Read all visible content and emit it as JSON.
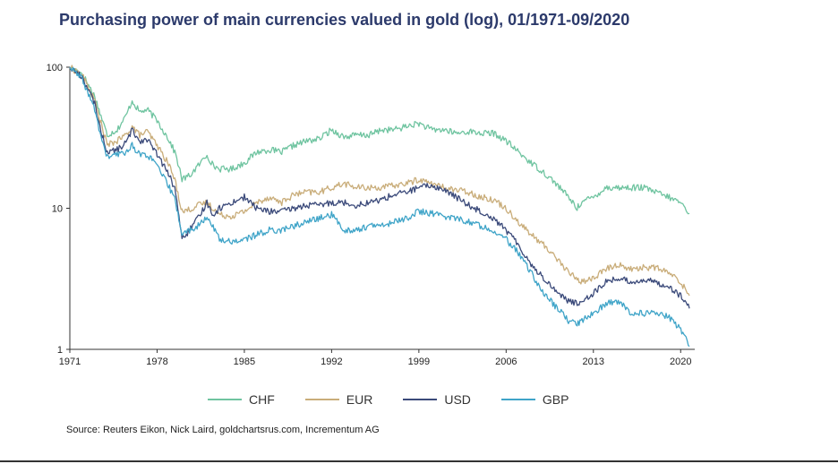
{
  "chart_data": {
    "type": "line",
    "title": "Purchasing power of main currencies valued in gold (log), 01/1971-09/2020",
    "xlabel": "",
    "ylabel": "",
    "yscale": "log",
    "ylim": [
      1,
      100
    ],
    "xlim": [
      1971,
      2020.7
    ],
    "y_ticks": [
      "1",
      "10",
      "100"
    ],
    "x_ticks": [
      "1971",
      "1978",
      "1985",
      "1992",
      "1999",
      "2006",
      "2013",
      "2020"
    ],
    "legend_position": "bottom",
    "series": [
      {
        "name": "CHF",
        "color": "#6fc4a0",
        "x": [
          1971,
          1972,
          1973,
          1973.5,
          1974,
          1974.8,
          1975.5,
          1976,
          1976.6,
          1977.2,
          1978,
          1979,
          1979.5,
          1980.0,
          1980.6,
          1981.3,
          1982,
          1982.5,
          1983,
          1984,
          1985,
          1986,
          1987,
          1988,
          1989,
          1990,
          1991,
          1992,
          1993,
          1994,
          1995,
          1996,
          1997,
          1998,
          1999,
          2000,
          2001,
          2002,
          2003,
          2004,
          2005,
          2006,
          2007,
          2008,
          2009,
          2010,
          2011,
          2011.7,
          2012,
          2013,
          2014,
          2015,
          2016,
          2017,
          2018,
          2019,
          2020,
          2020.7
        ],
        "values": [
          100,
          90,
          62,
          45,
          33,
          36,
          45,
          58,
          48,
          50,
          42,
          30,
          24,
          16,
          17,
          20,
          24,
          20,
          19,
          19,
          21,
          25,
          26,
          25,
          28,
          30,
          31,
          36,
          32,
          33,
          33,
          36,
          36,
          38,
          40,
          36,
          36,
          34,
          35,
          34,
          34,
          30,
          25,
          21,
          18,
          15,
          12,
          10,
          11,
          12,
          14,
          14,
          14,
          14,
          13,
          12,
          11,
          9.2
        ]
      },
      {
        "name": "EUR",
        "color": "#c9ad7a",
        "x": [
          1971,
          1972,
          1973,
          1973.5,
          1974,
          1974.8,
          1975.5,
          1976,
          1976.6,
          1977.2,
          1978,
          1979,
          1979.5,
          1980.0,
          1980.6,
          1981.3,
          1982,
          1982.5,
          1983,
          1984,
          1985,
          1986,
          1987,
          1988,
          1989,
          1990,
          1991,
          1992,
          1993,
          1994,
          1995,
          1996,
          1997,
          1998,
          1999,
          2000,
          2001,
          2002,
          2003,
          2004,
          2005,
          2006,
          2007,
          2008,
          2009,
          2010,
          2011,
          2011.7,
          2012,
          2013,
          2014,
          2015,
          2016,
          2017,
          2018,
          2019,
          2020,
          2020.7
        ],
        "values": [
          100,
          88,
          58,
          40,
          28,
          30,
          33,
          38,
          33,
          35,
          28,
          20,
          15,
          9.5,
          9.8,
          10.5,
          11,
          10,
          9,
          8.8,
          9.5,
          11,
          12,
          11,
          12.5,
          13,
          13,
          14,
          15,
          14,
          14,
          14,
          14.5,
          15,
          16,
          15,
          14,
          13.5,
          13,
          12,
          11.5,
          10,
          8,
          6.5,
          5.5,
          4.5,
          3.5,
          3.2,
          3.0,
          3.2,
          3.7,
          4.0,
          3.7,
          3.8,
          3.8,
          3.5,
          3.0,
          2.4
        ]
      },
      {
        "name": "USD",
        "color": "#3b4a7a",
        "x": [
          1971,
          1972,
          1973,
          1973.5,
          1974,
          1974.8,
          1975.5,
          1976,
          1976.6,
          1977.2,
          1978,
          1979,
          1979.5,
          1980.0,
          1980.6,
          1981.3,
          1982,
          1982.5,
          1983,
          1984,
          1985,
          1986,
          1987,
          1988,
          1989,
          1990,
          1991,
          1992,
          1993,
          1994,
          1995,
          1996,
          1997,
          1998,
          1999,
          2000,
          2001,
          2002,
          2003,
          2004,
          2005,
          2006,
          2007,
          2008,
          2009,
          2010,
          2011,
          2011.7,
          2012,
          2013,
          2014,
          2015,
          2016,
          2017,
          2018,
          2019,
          2020,
          2020.7
        ],
        "values": [
          100,
          85,
          55,
          35,
          25,
          26,
          29,
          36,
          30,
          31,
          24,
          17,
          13,
          6,
          7,
          8.5,
          11,
          9,
          10,
          11,
          12,
          10,
          9.5,
          9.5,
          10,
          10.5,
          10.5,
          11,
          11,
          10.5,
          11,
          11.5,
          12.5,
          13,
          14,
          14.5,
          13.5,
          12,
          10.5,
          9.5,
          8.5,
          7,
          5.5,
          4,
          3.2,
          2.6,
          2.2,
          2.1,
          2.2,
          2.5,
          3.0,
          3.2,
          3.0,
          3.1,
          3.0,
          2.8,
          2.4,
          1.95
        ]
      },
      {
        "name": "GBP",
        "color": "#3fa4c8",
        "x": [
          1971,
          1972,
          1973,
          1973.5,
          1974,
          1974.8,
          1975.5,
          1976,
          1976.6,
          1977.2,
          1978,
          1979,
          1979.5,
          1980.0,
          1980.6,
          1981.3,
          1982,
          1982.5,
          1983,
          1984,
          1985,
          1986,
          1987,
          1988,
          1989,
          1990,
          1991,
          1992,
          1993,
          1994,
          1995,
          1996,
          1997,
          1998,
          1999,
          2000,
          2001,
          2002,
          2003,
          2004,
          2005,
          2006,
          2007,
          2008,
          2009,
          2010,
          2011,
          2011.7,
          2012,
          2013,
          2014,
          2015,
          2016,
          2017,
          2018,
          2019,
          2020,
          2020.7
        ],
        "values": [
          100,
          82,
          50,
          32,
          23,
          24,
          25,
          28,
          24,
          24,
          20,
          14,
          11,
          6.5,
          7,
          7.5,
          8.5,
          7.5,
          6,
          5.8,
          6,
          6.5,
          7,
          7,
          7.5,
          8,
          8.5,
          9,
          7,
          7,
          7.5,
          7.5,
          8,
          8.5,
          9.5,
          9.2,
          8.8,
          8.5,
          8,
          7.5,
          7,
          6,
          4.8,
          3.5,
          2.5,
          2.0,
          1.6,
          1.5,
          1.6,
          1.8,
          2.1,
          2.2,
          1.8,
          1.8,
          1.8,
          1.7,
          1.4,
          1.05
        ]
      }
    ]
  },
  "source_note": "Source: Reuters Eikon, Nick Laird, goldchartsrus.com, Incrementum AG"
}
